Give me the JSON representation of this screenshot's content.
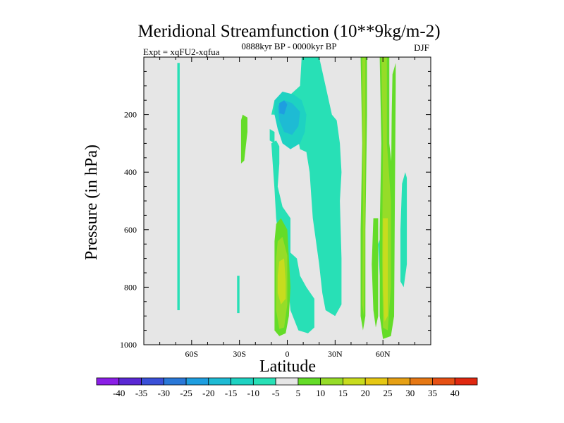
{
  "chart_data": {
    "type": "contour",
    "title": "Meridional Streamfunction (10**9kg/m-2)",
    "experiment": "Expt = xqFU2-xqfua",
    "period": "0888kyr BP - 0000kyr BP",
    "season": "DJF",
    "xlabel": "Latitude",
    "ylabel": "Pressure (in hPa)",
    "xlim": [
      -90,
      90
    ],
    "ylim": [
      1000,
      0
    ],
    "x_ticks": [
      {
        "value": -60,
        "label": "60S"
      },
      {
        "value": -30,
        "label": "30S"
      },
      {
        "value": 0,
        "label": "0"
      },
      {
        "value": 30,
        "label": "30N"
      },
      {
        "value": 60,
        "label": "60N"
      }
    ],
    "y_ticks": [
      {
        "value": 200,
        "label": "200"
      },
      {
        "value": 400,
        "label": "400"
      },
      {
        "value": 600,
        "label": "600"
      },
      {
        "value": 800,
        "label": "800"
      },
      {
        "value": 1000,
        "label": "1000"
      }
    ],
    "colorbar": {
      "levels": [
        -40,
        -35,
        -30,
        -25,
        -20,
        -15,
        -10,
        -5,
        5,
        10,
        15,
        20,
        25,
        30,
        35,
        40
      ],
      "labels": [
        "-40",
        "-35",
        "-30",
        "-25",
        "-20",
        "-15",
        "-10",
        "-5",
        "5",
        "10",
        "15",
        "20",
        "25",
        "30",
        "35",
        "40"
      ],
      "colors": [
        "#8a1ee6",
        "#5a28d4",
        "#3a50d8",
        "#2a78d8",
        "#1e9ee0",
        "#1ebbd4",
        "#1ed2c2",
        "#28e0b6",
        "#e6e6e6",
        "#64dc28",
        "#96dc28",
        "#c8dc1e",
        "#e6c814",
        "#e6a014",
        "#e67814",
        "#e65014",
        "#e02810"
      ]
    },
    "background_color": "#e6e6e6",
    "regions": [
      {
        "sign": "negative",
        "level": -5,
        "color": "#28e0b6",
        "polygon": [
          [
            -69,
            20
          ],
          [
            -67.5,
            20
          ],
          [
            -67.5,
            880
          ],
          [
            -69,
            880
          ]
        ]
      },
      {
        "sign": "negative",
        "level": -5,
        "color": "#28e0b6",
        "polygon": [
          [
            -31.5,
            760
          ],
          [
            -30,
            760
          ],
          [
            -30,
            890
          ],
          [
            -31.5,
            890
          ]
        ]
      },
      {
        "sign": "negative",
        "level": -5,
        "color": "#28e0b6",
        "polygon": [
          [
            -6,
            200
          ],
          [
            -4,
            170
          ],
          [
            3,
            180
          ],
          [
            8,
            320
          ],
          [
            12,
            330
          ],
          [
            14,
            400
          ],
          [
            15,
            480
          ],
          [
            16,
            560
          ],
          [
            18,
            640
          ],
          [
            20,
            720
          ],
          [
            22,
            820
          ],
          [
            24,
            880
          ],
          [
            30,
            900
          ],
          [
            34,
            860
          ],
          [
            34,
            700
          ],
          [
            33,
            500
          ],
          [
            34,
            400
          ],
          [
            33,
            300
          ],
          [
            31,
            220
          ],
          [
            28,
            200
          ],
          [
            26,
            150
          ],
          [
            20,
            0
          ],
          [
            9,
            0
          ],
          [
            8,
            100
          ],
          [
            -2,
            150
          ],
          [
            -8,
            150
          ],
          [
            -10,
            200
          ]
        ]
      },
      {
        "sign": "negative",
        "level": -5,
        "color": "#28e0b6",
        "polygon": [
          [
            -10,
            300
          ],
          [
            -7,
            290
          ],
          [
            -5,
            310
          ],
          [
            -5,
            370
          ],
          [
            -6,
            450
          ],
          [
            -3,
            520
          ],
          [
            2,
            560
          ],
          [
            2,
            680
          ],
          [
            6,
            700
          ],
          [
            8,
            760
          ],
          [
            12,
            800
          ],
          [
            17,
            840
          ],
          [
            17,
            940
          ],
          [
            13,
            960
          ],
          [
            7,
            950
          ],
          [
            2,
            880
          ],
          [
            0,
            760
          ],
          [
            -2,
            700
          ],
          [
            -5,
            650
          ],
          [
            -7,
            560
          ],
          [
            -8,
            460
          ],
          [
            -9,
            380
          ]
        ]
      },
      {
        "sign": "negative",
        "level": -5,
        "color": "#28e0b6",
        "polygon": [
          [
            -11,
            250
          ],
          [
            -8,
            260
          ],
          [
            -8,
            300
          ],
          [
            -11,
            290
          ]
        ]
      },
      {
        "sign": "negative",
        "level": -10,
        "color": "#1ed2c2",
        "polygon": [
          [
            -8,
            150
          ],
          [
            -3,
            120
          ],
          [
            4,
            130
          ],
          [
            9,
            150
          ],
          [
            12,
            200
          ],
          [
            11,
            260
          ],
          [
            8,
            300
          ],
          [
            2,
            320
          ],
          [
            -3,
            300
          ],
          [
            -6,
            250
          ],
          [
            -8,
            200
          ]
        ]
      },
      {
        "sign": "negative",
        "level": -15,
        "color": "#1ebbd4",
        "polygon": [
          [
            -6,
            170
          ],
          [
            -2,
            150
          ],
          [
            3,
            160
          ],
          [
            8,
            190
          ],
          [
            7,
            240
          ],
          [
            3,
            270
          ],
          [
            -2,
            260
          ],
          [
            -5,
            220
          ]
        ]
      },
      {
        "sign": "negative",
        "level": -20,
        "color": "#1e9ee0",
        "polygon": [
          [
            -5,
            160
          ],
          [
            -2,
            150
          ],
          [
            0,
            165
          ],
          [
            -2,
            200
          ],
          [
            -5,
            195
          ]
        ]
      },
      {
        "sign": "negative",
        "level": -5,
        "color": "#28e0b6",
        "polygon": [
          [
            72,
            440
          ],
          [
            74,
            400
          ],
          [
            75,
            420
          ],
          [
            75,
            720
          ],
          [
            73,
            800
          ],
          [
            71,
            780
          ],
          [
            71,
            600
          ]
        ]
      },
      {
        "sign": "negative",
        "level": -5,
        "color": "#28e0b6",
        "polygon": [
          [
            57,
            650
          ],
          [
            59,
            620
          ],
          [
            60,
            720
          ],
          [
            58,
            760
          ]
        ]
      },
      {
        "sign": "positive",
        "level": 5,
        "color": "#64dc28",
        "polygon": [
          [
            -29,
            220
          ],
          [
            -28,
            200
          ],
          [
            -25,
            210
          ],
          [
            -25,
            260
          ],
          [
            -26,
            310
          ],
          [
            -27,
            360
          ],
          [
            -29,
            370
          ]
        ]
      },
      {
        "sign": "positive",
        "level": 5,
        "color": "#64dc28",
        "polygon": [
          [
            -7,
            580
          ],
          [
            -4,
            560
          ],
          [
            0,
            600
          ],
          [
            1,
            700
          ],
          [
            2,
            800
          ],
          [
            1,
            900
          ],
          [
            -1,
            960
          ],
          [
            -5,
            970
          ],
          [
            -8,
            950
          ],
          [
            -8,
            800
          ],
          [
            -8,
            640
          ]
        ]
      },
      {
        "sign": "positive",
        "level": 10,
        "color": "#96dc28",
        "polygon": [
          [
            -6,
            640
          ],
          [
            -3,
            625
          ],
          [
            0,
            690
          ],
          [
            0,
            860
          ],
          [
            -2,
            940
          ],
          [
            -5,
            945
          ],
          [
            -7,
            880
          ],
          [
            -7,
            700
          ]
        ]
      },
      {
        "sign": "positive",
        "level": 15,
        "color": "#c8dc1e",
        "polygon": [
          [
            -5,
            710
          ],
          [
            -2,
            700
          ],
          [
            -1,
            780
          ],
          [
            -1,
            840
          ],
          [
            -4,
            860
          ],
          [
            -6,
            820
          ],
          [
            -6,
            760
          ]
        ]
      },
      {
        "sign": "positive",
        "level": 5,
        "color": "#64dc28",
        "polygon": [
          [
            46,
            0
          ],
          [
            50,
            0
          ],
          [
            50,
            200
          ],
          [
            49,
            600
          ],
          [
            49,
            900
          ],
          [
            47.5,
            950
          ],
          [
            46,
            900
          ],
          [
            46,
            600
          ],
          [
            47,
            300
          ]
        ]
      },
      {
        "sign": "positive",
        "level": 10,
        "color": "#96dc28",
        "polygon": [
          [
            47,
            0
          ],
          [
            49,
            0
          ],
          [
            49,
            300
          ],
          [
            48.5,
            700
          ],
          [
            48,
            900
          ],
          [
            47,
            860
          ],
          [
            47.5,
            500
          ]
        ]
      },
      {
        "sign": "positive",
        "level": 5,
        "color": "#64dc28",
        "polygon": [
          [
            54,
            560
          ],
          [
            57,
            560
          ],
          [
            57,
            900
          ],
          [
            55.5,
            940
          ],
          [
            54,
            880
          ],
          [
            53,
            720
          ]
        ]
      },
      {
        "sign": "positive",
        "level": 5,
        "color": "#64dc28",
        "polygon": [
          [
            58,
            0
          ],
          [
            64,
            0
          ],
          [
            64,
            300
          ],
          [
            66,
            400
          ],
          [
            67,
            600
          ],
          [
            67,
            900
          ],
          [
            65,
            970
          ],
          [
            60,
            980
          ],
          [
            58,
            900
          ],
          [
            58,
            600
          ],
          [
            59,
            300
          ]
        ]
      },
      {
        "sign": "positive",
        "level": 10,
        "color": "#96dc28",
        "polygon": [
          [
            59,
            0
          ],
          [
            62.5,
            0
          ],
          [
            62.5,
            300
          ],
          [
            65,
            500
          ],
          [
            65,
            800
          ],
          [
            63,
            950
          ],
          [
            60,
            940
          ],
          [
            59.5,
            700
          ],
          [
            60,
            300
          ]
        ]
      },
      {
        "sign": "positive",
        "level": 15,
        "color": "#c8dc1e",
        "polygon": [
          [
            60,
            560
          ],
          [
            63,
            560
          ],
          [
            63,
            900
          ],
          [
            61,
            920
          ],
          [
            60,
            800
          ]
        ]
      },
      {
        "sign": "positive",
        "level": 5,
        "color": "#64dc28",
        "polygon": [
          [
            66,
            60
          ],
          [
            68,
            20
          ],
          [
            68,
            100
          ],
          [
            67.5,
            500
          ],
          [
            67,
            900
          ],
          [
            65,
            940
          ],
          [
            65,
            500
          ],
          [
            65.5,
            200
          ]
        ]
      }
    ]
  }
}
